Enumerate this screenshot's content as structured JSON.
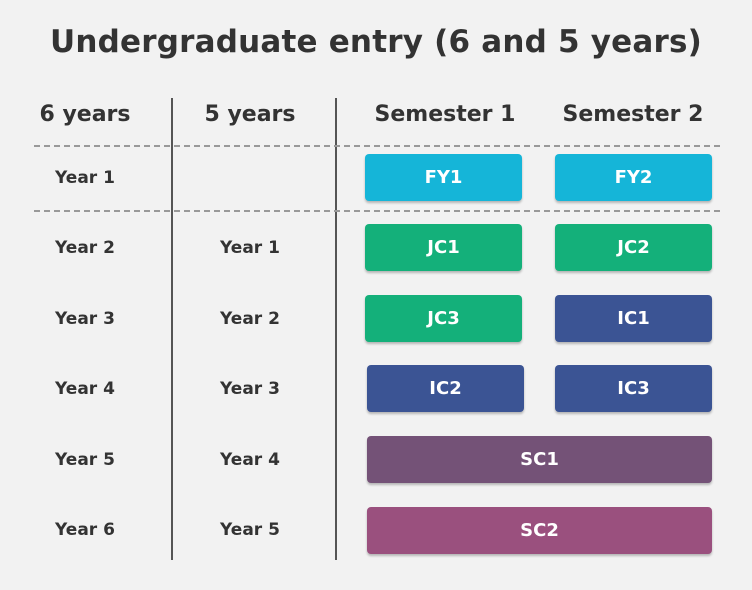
{
  "title": "Undergraduate entry (6 and 5 years)",
  "headers": {
    "six_years": "6 years",
    "five_years": "5 years",
    "semester1": "Semester 1",
    "semester2": "Semester 2"
  },
  "rows": [
    {
      "six": "Year 1",
      "five": ""
    },
    {
      "six": "Year 2",
      "five": "Year 1"
    },
    {
      "six": "Year 3",
      "five": "Year 2"
    },
    {
      "six": "Year 4",
      "five": "Year 3"
    },
    {
      "six": "Year 5",
      "five": "Year 4"
    },
    {
      "six": "Year 6",
      "five": "Year 5"
    }
  ],
  "blocks": {
    "fy1": "FY1",
    "fy2": "FY2",
    "jc1": "JC1",
    "jc2": "JC2",
    "jc3": "JC3",
    "ic1": "IC1",
    "ic2": "IC2",
    "ic3": "IC3",
    "sc1": "SC1",
    "sc2": "SC2"
  },
  "colors": {
    "foundation": "#15b5d8",
    "junior": "#14b07a",
    "intermediate": "#3b5494",
    "senior1": "#745277",
    "senior2": "#9a507e"
  }
}
